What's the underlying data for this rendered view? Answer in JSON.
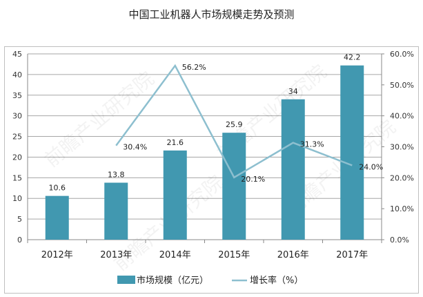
{
  "chart_data": {
    "type": "bar+line",
    "title": "中国工业机器人市场规模走势及预测",
    "categories": [
      "2012年",
      "2013年",
      "2014年",
      "2015年",
      "2016年",
      "2017年"
    ],
    "series": [
      {
        "name": "市场规模（亿元）",
        "type": "bar",
        "axis": "left",
        "values": [
          10.6,
          13.8,
          21.6,
          25.9,
          34,
          42.2
        ],
        "labels": [
          "10.6",
          "13.8",
          "21.6",
          "25.9",
          "34",
          "42.2"
        ],
        "color": "#4198b0"
      },
      {
        "name": "增长率（%）",
        "type": "line",
        "axis": "right",
        "values": [
          null,
          30.4,
          56.2,
          20.1,
          31.3,
          24.0
        ],
        "labels": [
          "",
          "30.4%",
          "56.2%",
          "20.1%",
          "31.3%",
          "24.0%"
        ],
        "color": "#8dbfcf"
      }
    ],
    "y_left": {
      "range": [
        0,
        45
      ],
      "ticks": [
        "0",
        "5",
        "10",
        "15",
        "20",
        "25",
        "30",
        "35",
        "40",
        "45"
      ]
    },
    "y_right": {
      "range": [
        0,
        60
      ],
      "ticks": [
        "0.0%",
        "10.0%",
        "20.0%",
        "30.0%",
        "40.0%",
        "50.0%",
        "60.0%"
      ]
    },
    "grid": true,
    "legend": "bottom",
    "watermark": "前瞻产业研究院"
  }
}
